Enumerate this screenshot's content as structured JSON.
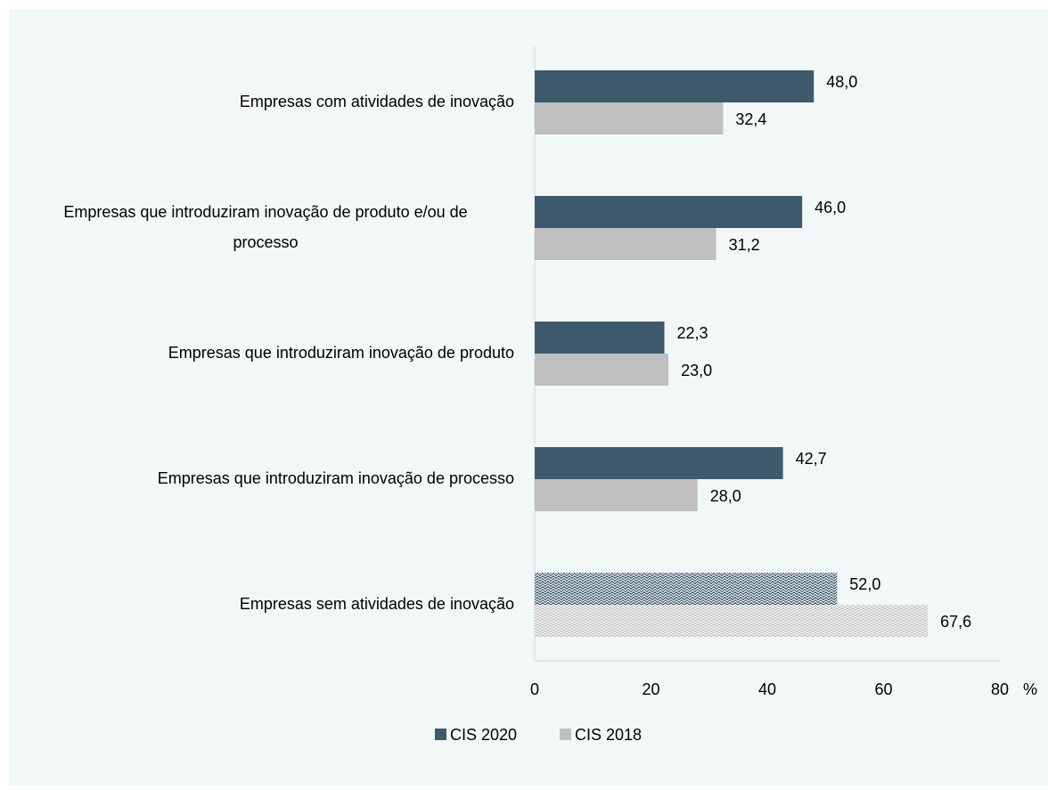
{
  "chart_data": {
    "type": "hbar",
    "categories": [
      "Empresas com atividades de inovação",
      "Empresas que introduziram inovação de produto e/ou de processo",
      "Empresas que introduziram inovação de produto",
      "Empresas que introduziram inovação de processo",
      "Empresas sem atividades de inovação"
    ],
    "series": [
      {
        "name": "CIS 2020",
        "color": "#3d5a6c",
        "label_color": "#000000",
        "values": [
          48.0,
          46.0,
          22.3,
          42.7,
          52.0
        ],
        "value_labels": [
          "48,0",
          "46,0",
          "22,3",
          "42,7",
          "52,0"
        ]
      },
      {
        "name": "CIS 2018",
        "color": "#bfbfbf",
        "label_color": "#7f7f7f",
        "values": [
          32.4,
          31.2,
          23.0,
          28.0,
          67.6
        ],
        "value_labels": [
          "32,4",
          "31,2",
          "23,0",
          "28,0",
          "67,6"
        ]
      }
    ],
    "hatched": [
      false,
      false,
      false,
      false,
      true
    ],
    "x_label": "%",
    "xlim": [
      0,
      80
    ],
    "xticks": [
      0,
      20,
      40,
      60,
      80
    ],
    "grid": false,
    "legend": "bottom"
  }
}
